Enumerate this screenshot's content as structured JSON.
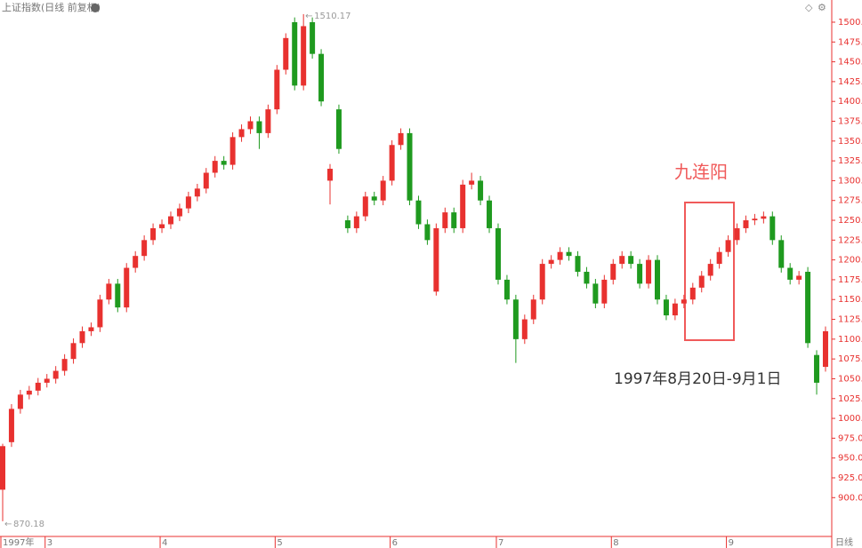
{
  "header": {
    "title": "上证指数(日线 前复权)"
  },
  "chart_data": {
    "type": "candlestick",
    "open": [
      910,
      970,
      1012,
      1030,
      1035,
      1045,
      1050,
      1060,
      1075,
      1095,
      1110,
      1115,
      1150,
      1170,
      1140,
      1190,
      1205,
      1225,
      1240,
      1245,
      1255,
      1265,
      1280,
      1290,
      1310,
      1325,
      1320,
      1355,
      1365,
      1375,
      1360,
      1390,
      1440,
      1500,
      1420,
      1500,
      1460,
      1300,
      1390,
      1250,
      1240,
      1255,
      1280,
      1275,
      1300,
      1345,
      1360,
      1275,
      1245,
      1160,
      1240,
      1260,
      1240,
      1295,
      1300,
      1275,
      1240,
      1175,
      1150,
      1100,
      1125,
      1150,
      1195,
      1200,
      1210,
      1205,
      1185,
      1170,
      1145,
      1175,
      1195,
      1205,
      1195,
      1170,
      1200,
      1150,
      1130,
      1145,
      1150,
      1165,
      1180,
      1195,
      1210,
      1225,
      1240,
      1250,
      1252,
      1255,
      1225,
      1190,
      1175,
      1185,
      1080,
      1065
    ],
    "high": [
      968,
      1018,
      1036,
      1041,
      1051,
      1056,
      1066,
      1081,
      1101,
      1116,
      1121,
      1156,
      1176,
      1176,
      1196,
      1211,
      1231,
      1246,
      1251,
      1261,
      1271,
      1286,
      1296,
      1316,
      1331,
      1331,
      1361,
      1371,
      1381,
      1381,
      1396,
      1446,
      1486,
      1506,
      1510.17,
      1506,
      1466,
      1321,
      1396,
      1256,
      1261,
      1286,
      1286,
      1306,
      1351,
      1366,
      1366,
      1281,
      1251,
      1246,
      1266,
      1266,
      1301,
      1310,
      1306,
      1281,
      1246,
      1181,
      1156,
      1131,
      1156,
      1201,
      1206,
      1216,
      1216,
      1211,
      1191,
      1176,
      1181,
      1201,
      1211,
      1211,
      1201,
      1206,
      1206,
      1156,
      1151,
      1156,
      1171,
      1186,
      1201,
      1216,
      1231,
      1246,
      1256,
      1258,
      1261,
      1261,
      1231,
      1196,
      1186,
      1191,
      1086,
      1116
    ],
    "low": [
      870.18,
      964,
      1006,
      1024,
      1029,
      1039,
      1044,
      1054,
      1069,
      1089,
      1104,
      1109,
      1144,
      1134,
      1134,
      1184,
      1199,
      1219,
      1234,
      1239,
      1249,
      1259,
      1274,
      1284,
      1304,
      1314,
      1314,
      1349,
      1359,
      1340,
      1354,
      1384,
      1434,
      1414,
      1414,
      1454,
      1394,
      1270,
      1334,
      1234,
      1234,
      1249,
      1269,
      1269,
      1294,
      1339,
      1269,
      1239,
      1219,
      1155,
      1234,
      1234,
      1234,
      1289,
      1269,
      1234,
      1169,
      1144,
      1070,
      1094,
      1119,
      1144,
      1189,
      1194,
      1199,
      1179,
      1164,
      1139,
      1139,
      1169,
      1189,
      1189,
      1164,
      1164,
      1144,
      1124,
      1124,
      1139,
      1144,
      1159,
      1174,
      1189,
      1204,
      1219,
      1234,
      1244,
      1246,
      1219,
      1184,
      1169,
      1169,
      1089,
      1030,
      1059
    ],
    "close": [
      965,
      1012,
      1030,
      1035,
      1045,
      1050,
      1060,
      1075,
      1095,
      1110,
      1115,
      1150,
      1170,
      1140,
      1190,
      1205,
      1225,
      1240,
      1245,
      1255,
      1265,
      1280,
      1290,
      1310,
      1325,
      1320,
      1355,
      1365,
      1375,
      1360,
      1390,
      1440,
      1480,
      1420,
      1495,
      1460,
      1400,
      1315,
      1340,
      1240,
      1255,
      1280,
      1275,
      1300,
      1345,
      1360,
      1275,
      1245,
      1225,
      1240,
      1260,
      1240,
      1295,
      1300,
      1275,
      1240,
      1175,
      1150,
      1100,
      1125,
      1150,
      1195,
      1200,
      1210,
      1205,
      1185,
      1170,
      1145,
      1175,
      1195,
      1205,
      1195,
      1170,
      1200,
      1150,
      1130,
      1145,
      1150,
      1165,
      1180,
      1195,
      1210,
      1225,
      1240,
      1250,
      1252,
      1255,
      1225,
      1190,
      1175,
      1180,
      1095,
      1045,
      1110
    ],
    "up_color": "#e8312f",
    "down_color": "#1f9a1f",
    "ylim": [
      851,
      1528
    ],
    "yticks": [
      {
        "value": 900,
        "label": "900.0"
      },
      {
        "value": 925,
        "label": "925.0"
      },
      {
        "value": 950,
        "label": "950.0"
      },
      {
        "value": 975,
        "label": "975.0"
      },
      {
        "value": 1000,
        "label": "1000.0"
      },
      {
        "value": 1025,
        "label": "1025.0"
      },
      {
        "value": 1050,
        "label": "1050.0"
      },
      {
        "value": 1075,
        "label": "1075.0"
      },
      {
        "value": 1100,
        "label": "1100.0"
      },
      {
        "value": 1125,
        "label": "1125.0"
      },
      {
        "value": 1150,
        "label": "1150.0"
      },
      {
        "value": 1175,
        "label": "1175.0"
      },
      {
        "value": 1200,
        "label": "1200.0"
      },
      {
        "value": 1225,
        "label": "1225.0"
      },
      {
        "value": 1250,
        "label": "1250.0"
      },
      {
        "value": 1275,
        "label": "1275.0"
      },
      {
        "value": 1300,
        "label": "1300.0"
      },
      {
        "value": 1325,
        "label": "1325.0"
      },
      {
        "value": 1350,
        "label": "1350.0"
      },
      {
        "value": 1375,
        "label": "1375.0"
      },
      {
        "value": 1400,
        "label": "1400.0"
      },
      {
        "value": 1425,
        "label": "1425.0"
      },
      {
        "value": 1450,
        "label": "1450.0"
      },
      {
        "value": 1475,
        "label": "1475.0"
      },
      {
        "value": 1500,
        "label": "1500.0"
      }
    ],
    "xticks": [
      {
        "value": 0,
        "label": "1997年"
      },
      {
        "value": 5,
        "label": "3"
      },
      {
        "value": 18,
        "label": "4"
      },
      {
        "value": 31,
        "label": "5"
      },
      {
        "value": 44,
        "label": "6"
      },
      {
        "value": 56,
        "label": "7"
      },
      {
        "value": 69,
        "label": "8"
      },
      {
        "value": 82,
        "label": "9"
      }
    ],
    "period_label": "日线",
    "annotations": [
      "九连阳",
      "1997年8月20日-9月1日"
    ],
    "max_index": 34,
    "min_index": 0
  }
}
